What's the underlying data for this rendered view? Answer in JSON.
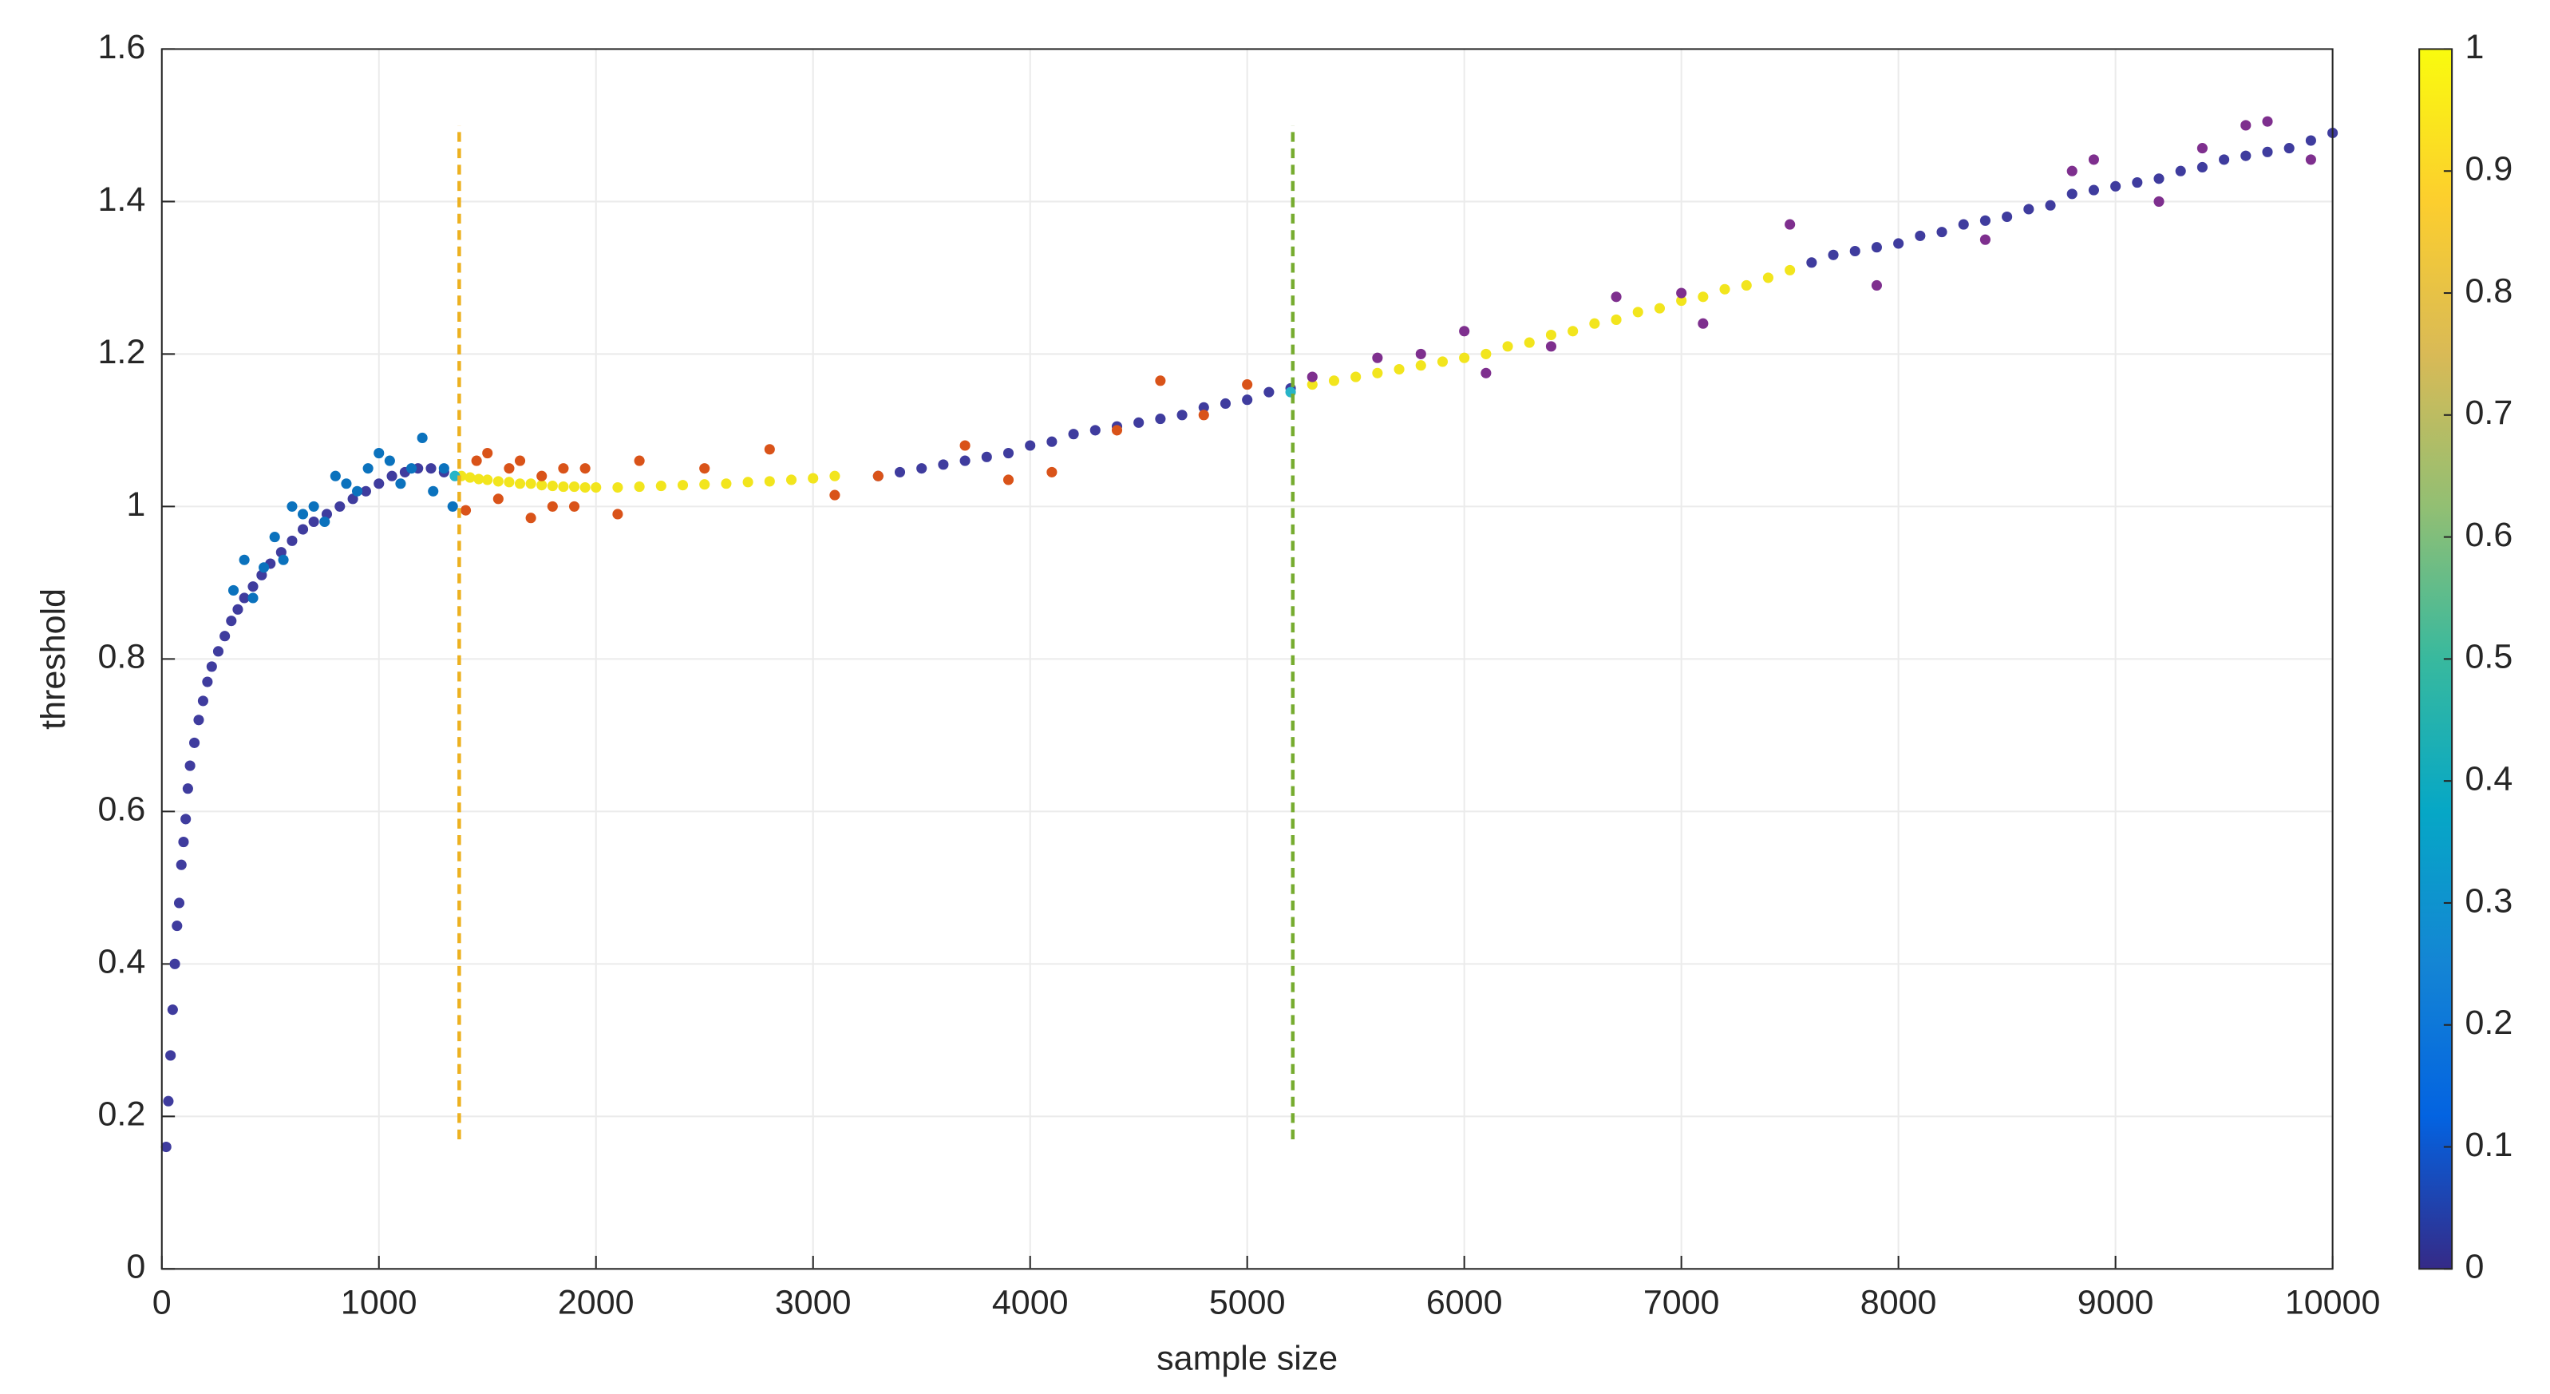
{
  "chart_data": {
    "type": "scatter",
    "xlabel": "sample size",
    "ylabel": "threshold",
    "xlim": [
      0,
      10000
    ],
    "xticks": [
      0,
      1000,
      2000,
      3000,
      4000,
      5000,
      6000,
      7000,
      8000,
      9000,
      10000
    ],
    "ylim": [
      0,
      1.6
    ],
    "yticks": [
      0,
      0.2,
      0.4,
      0.6,
      0.8,
      1,
      1.2,
      1.4,
      1.6
    ],
    "grid": true,
    "series": [
      {
        "color": "#3f3c9e",
        "x": [
          20,
          30,
          40,
          50,
          60,
          70,
          80,
          90,
          100,
          110,
          120,
          130,
          150,
          170,
          190,
          210,
          230,
          260,
          290,
          320,
          350,
          380,
          420,
          460,
          500,
          550,
          600,
          650,
          700,
          760,
          820,
          880,
          940,
          1000,
          1060,
          1120,
          1180,
          1240,
          1300,
          3300,
          3400,
          3500,
          3600,
          3700,
          3800,
          3900,
          4000,
          4100,
          4200,
          4300,
          4400,
          4500,
          4600,
          4700,
          4800,
          4900,
          5000,
          5100,
          5200,
          7600,
          7700,
          7800,
          7900,
          8000,
          8100,
          8200,
          8300,
          8400,
          8500,
          8600,
          8700,
          8800,
          8900,
          9000,
          9100,
          9200,
          9300,
          9400,
          9500,
          9600,
          9700,
          9800,
          9900,
          10000
        ],
        "values": [
          0.16,
          0.22,
          0.28,
          0.34,
          0.4,
          0.45,
          0.48,
          0.53,
          0.56,
          0.59,
          0.63,
          0.66,
          0.69,
          0.72,
          0.745,
          0.77,
          0.79,
          0.81,
          0.83,
          0.85,
          0.865,
          0.88,
          0.895,
          0.91,
          0.925,
          0.94,
          0.955,
          0.97,
          0.98,
          0.99,
          1.0,
          1.01,
          1.02,
          1.03,
          1.04,
          1.045,
          1.05,
          1.05,
          1.045,
          1.04,
          1.045,
          1.05,
          1.055,
          1.06,
          1.065,
          1.07,
          1.08,
          1.085,
          1.095,
          1.1,
          1.105,
          1.11,
          1.115,
          1.12,
          1.13,
          1.135,
          1.14,
          1.15,
          1.155,
          1.32,
          1.33,
          1.335,
          1.34,
          1.345,
          1.355,
          1.36,
          1.37,
          1.375,
          1.38,
          1.39,
          1.395,
          1.41,
          1.415,
          1.42,
          1.425,
          1.43,
          1.44,
          1.445,
          1.455,
          1.46,
          1.465,
          1.47,
          1.48,
          1.49
        ]
      },
      {
        "color": "#0b72bd",
        "x": [
          330,
          380,
          420,
          470,
          520,
          560,
          600,
          650,
          700,
          750,
          800,
          850,
          900,
          950,
          1000,
          1050,
          1100,
          1150,
          1200,
          1250,
          1300,
          1340
        ],
        "values": [
          0.89,
          0.93,
          0.88,
          0.92,
          0.96,
          0.93,
          1.0,
          0.99,
          1.0,
          0.98,
          1.04,
          1.03,
          1.02,
          1.05,
          1.07,
          1.06,
          1.03,
          1.05,
          1.09,
          1.02,
          1.05,
          1.0
        ]
      },
      {
        "color": "#f2e51d",
        "x": [
          1380,
          1420,
          1460,
          1500,
          1550,
          1600,
          1650,
          1700,
          1750,
          1800,
          1850,
          1900,
          1950,
          2000,
          2100,
          2200,
          2300,
          2400,
          2500,
          2600,
          2700,
          2800,
          2900,
          3000,
          3100,
          5300,
          5400,
          5500,
          5600,
          5700,
          5800,
          5900,
          6000,
          6100,
          6200,
          6300,
          6400,
          6500,
          6600,
          6700,
          6800,
          6900,
          7000,
          7100,
          7200,
          7300,
          7400,
          7500
        ],
        "values": [
          1.04,
          1.038,
          1.036,
          1.035,
          1.033,
          1.032,
          1.03,
          1.03,
          1.028,
          1.027,
          1.026,
          1.026,
          1.025,
          1.025,
          1.025,
          1.026,
          1.027,
          1.028,
          1.029,
          1.03,
          1.032,
          1.033,
          1.035,
          1.037,
          1.04,
          1.16,
          1.165,
          1.17,
          1.175,
          1.18,
          1.185,
          1.19,
          1.195,
          1.2,
          1.21,
          1.215,
          1.225,
          1.23,
          1.24,
          1.245,
          1.255,
          1.26,
          1.27,
          1.275,
          1.285,
          1.29,
          1.3,
          1.31
        ]
      },
      {
        "color": "#d95319",
        "x": [
          1400,
          1450,
          1500,
          1550,
          1600,
          1650,
          1700,
          1750,
          1800,
          1850,
          1900,
          1950,
          2100,
          2200,
          2500,
          2800,
          3100,
          3300,
          3700,
          3900,
          4100,
          4400,
          4600,
          4800,
          5000
        ],
        "values": [
          0.995,
          1.06,
          1.07,
          1.01,
          1.05,
          1.06,
          0.985,
          1.04,
          1.0,
          1.05,
          1.0,
          1.05,
          0.99,
          1.06,
          1.05,
          1.075,
          1.015,
          1.04,
          1.08,
          1.035,
          1.045,
          1.1,
          1.165,
          1.12,
          1.16
        ]
      },
      {
        "color": "#7e2f8e",
        "x": [
          5300,
          5600,
          5800,
          6000,
          6100,
          6400,
          6700,
          7000,
          7100,
          7500,
          7900,
          8400,
          8800,
          8900,
          9200,
          9400,
          9600,
          9700,
          9900
        ],
        "values": [
          1.17,
          1.195,
          1.2,
          1.23,
          1.175,
          1.21,
          1.275,
          1.28,
          1.24,
          1.37,
          1.29,
          1.35,
          1.44,
          1.455,
          1.4,
          1.47,
          1.5,
          1.505,
          1.455
        ]
      },
      {
        "color": "#27b4c8",
        "x": [
          5200,
          1350
        ],
        "values": [
          1.15,
          1.04
        ]
      }
    ],
    "reference_lines": [
      {
        "x": 1370,
        "ymin": 0.17,
        "ymax": 1.5,
        "color": "#edb120"
      },
      {
        "x": 5210,
        "ymin": 0.17,
        "ymax": 1.5,
        "color": "#77ac30"
      }
    ],
    "clim": [
      0,
      1
    ],
    "cticks": [
      0,
      0.1,
      0.2,
      0.3,
      0.4,
      0.5,
      0.6,
      0.7,
      0.8,
      0.9,
      1
    ],
    "colormap": [
      "#352a87",
      "#0363e1",
      "#1485d4",
      "#06a7c6",
      "#38b99e",
      "#92bf73",
      "#d9ba56",
      "#fcce2e",
      "#f9fb0e"
    ]
  }
}
